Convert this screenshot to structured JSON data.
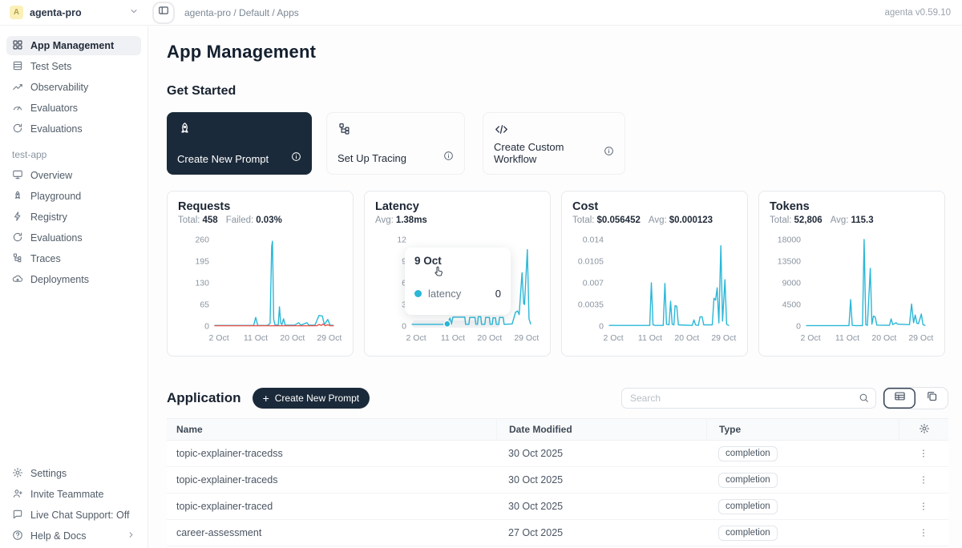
{
  "header": {
    "avatar_letter": "A",
    "workspace_name": "agenta-pro",
    "breadcrumb": "agenta-pro / Default / Apps",
    "version": "agenta v0.59.10"
  },
  "sidebar": {
    "top_items": [
      {
        "label": "App Management",
        "icon": "grid-icon"
      },
      {
        "label": "Test Sets",
        "icon": "table-icon"
      },
      {
        "label": "Observability",
        "icon": "trend-chart-icon"
      },
      {
        "label": "Evaluators",
        "icon": "gauge-icon"
      },
      {
        "label": "Evaluations",
        "icon": "refresh-icon"
      }
    ],
    "project_label": "test-app",
    "project_items": [
      {
        "label": "Overview",
        "icon": "monitor-icon"
      },
      {
        "label": "Playground",
        "icon": "rocket-icon"
      },
      {
        "label": "Registry",
        "icon": "lightning-icon"
      },
      {
        "label": "Evaluations",
        "icon": "refresh-icon"
      },
      {
        "label": "Traces",
        "icon": "tree-icon"
      },
      {
        "label": "Deployments",
        "icon": "cloud-icon"
      }
    ],
    "bottom_items": [
      {
        "label": "Settings",
        "icon": "gear-icon"
      },
      {
        "label": "Invite Teammate",
        "icon": "person-plus-icon"
      },
      {
        "label": "Live Chat Support: Off",
        "icon": "chat-icon"
      },
      {
        "label": "Help & Docs",
        "icon": "help-icon"
      }
    ]
  },
  "main": {
    "page_title": "App Management",
    "get_started": {
      "title": "Get Started",
      "cards": [
        {
          "label": "Create New Prompt",
          "icon": "rocket-icon"
        },
        {
          "label": "Set Up Tracing",
          "icon": "tree-icon"
        },
        {
          "label": "Create Custom Workflow",
          "icon": "code-icon"
        }
      ]
    },
    "application": {
      "title": "Application",
      "create_button_plus": "+",
      "create_button_label": "Create New Prompt",
      "search_placeholder": "Search",
      "columns": [
        "Name",
        "Date Modified",
        "Type"
      ],
      "rows": [
        {
          "name": "topic-explainer-tracedss",
          "date": "30 Oct 2025",
          "type": "completion"
        },
        {
          "name": "topic-explainer-traceds",
          "date": "30 Oct 2025",
          "type": "completion"
        },
        {
          "name": "topic-explainer-traced",
          "date": "30 Oct 2025",
          "type": "completion"
        },
        {
          "name": "career-assessment",
          "date": "27 Oct 2025",
          "type": "completion"
        }
      ]
    }
  },
  "tooltip": {
    "date": "9 Oct",
    "series": "latency",
    "value": "0"
  },
  "colors": {
    "accent": "#2bb7d7",
    "error": "#e8544c",
    "dark": "#1b2a3a"
  },
  "chart_data": [
    {
      "type": "line",
      "title": "Requests",
      "stats": [
        {
          "label": "Total:",
          "value": "458"
        },
        {
          "label": "Failed:",
          "value": "0.03%"
        }
      ],
      "ylabels": [
        260,
        195,
        130,
        65,
        0
      ],
      "ylim": [
        0,
        260
      ],
      "xlim": [
        1,
        31
      ],
      "xticks": [
        2,
        11,
        20,
        29
      ],
      "xlabels": [
        "2 Oct",
        "11 Oct",
        "20 Oct",
        "29 Oct"
      ],
      "series": [
        {
          "name": "requests",
          "color": "#2bb7d7",
          "points": [
            [
              1,
              2
            ],
            [
              10,
              2
            ],
            [
              10.5,
              2
            ],
            [
              11,
              26
            ],
            [
              11.5,
              2
            ],
            [
              13.8,
              2
            ],
            [
              14.5,
              8
            ],
            [
              14.9,
              240
            ],
            [
              15.1,
              255
            ],
            [
              15.4,
              20
            ],
            [
              15.7,
              4
            ],
            [
              16.5,
              3
            ],
            [
              16.8,
              58
            ],
            [
              17.1,
              10
            ],
            [
              17.4,
              4
            ],
            [
              17.8,
              22
            ],
            [
              18.2,
              3
            ],
            [
              20.5,
              3
            ],
            [
              21.5,
              10
            ],
            [
              22,
              3
            ],
            [
              23.5,
              10
            ],
            [
              24,
              3
            ],
            [
              25.5,
              3
            ],
            [
              26,
              18
            ],
            [
              26.5,
              32
            ],
            [
              27.3,
              30
            ],
            [
              27.8,
              4
            ],
            [
              28.6,
              20
            ],
            [
              29.2,
              3
            ],
            [
              30,
              2
            ]
          ]
        },
        {
          "name": "failed",
          "color": "#e8544c",
          "points": [
            [
              1,
              1
            ],
            [
              26,
              1
            ],
            [
              26.5,
              5
            ],
            [
              27,
              2
            ],
            [
              27.5,
              6
            ],
            [
              28,
              1
            ],
            [
              28.6,
              4
            ],
            [
              29.2,
              1
            ],
            [
              30,
              1
            ]
          ]
        }
      ]
    },
    {
      "type": "line",
      "title": "Latency",
      "stats": [
        {
          "label": "Avg:",
          "value": "1.38ms"
        }
      ],
      "ylabels": [
        12,
        9,
        6,
        3,
        0
      ],
      "ylim": [
        0,
        12
      ],
      "xlim": [
        1,
        31
      ],
      "xticks": [
        2,
        11,
        20,
        29
      ],
      "xlabels": [
        "2 Oct",
        "11 Oct",
        "20 Oct",
        "29 Oct"
      ],
      "band": true,
      "marker": [
        9.6,
        0.3
      ],
      "series": [
        {
          "name": "latency",
          "color": "#2bb7d7",
          "points": [
            [
              1,
              0.25
            ],
            [
              8.8,
              0.25
            ],
            [
              9.6,
              0.3
            ],
            [
              10.3,
              1.1
            ],
            [
              10.6,
              0.25
            ],
            [
              11,
              1.25
            ],
            [
              13.9,
              1.25
            ],
            [
              14.1,
              0.25
            ],
            [
              14.9,
              0.25
            ],
            [
              15.1,
              1.2
            ],
            [
              16.4,
              1.2
            ],
            [
              16.6,
              0.25
            ],
            [
              17,
              0.25
            ],
            [
              17.2,
              1.3
            ],
            [
              17.8,
              1.3
            ],
            [
              18,
              0.25
            ],
            [
              18.8,
              0.25
            ],
            [
              19,
              1.2
            ],
            [
              19.9,
              1.2
            ],
            [
              20.1,
              0.25
            ],
            [
              20.6,
              0.25
            ],
            [
              20.8,
              1.15
            ],
            [
              21.4,
              1.15
            ],
            [
              21.6,
              0.25
            ],
            [
              22.2,
              0.25
            ],
            [
              22.4,
              1.2
            ],
            [
              23.3,
              1.2
            ],
            [
              23.5,
              0.25
            ],
            [
              25.5,
              0.3
            ],
            [
              26.3,
              1.9
            ],
            [
              26.8,
              2.1
            ],
            [
              27.2,
              1.6
            ],
            [
              27.9,
              7.4
            ],
            [
              28.3,
              3.1
            ],
            [
              28.5,
              3.0
            ],
            [
              29.2,
              10.6
            ],
            [
              29.6,
              1
            ],
            [
              30,
              0.3
            ]
          ]
        }
      ]
    },
    {
      "type": "line",
      "title": "Cost",
      "stats": [
        {
          "label": "Total:",
          "value": "$0.056452"
        },
        {
          "label": "Avg:",
          "value": "$0.000123"
        }
      ],
      "ylabels": [
        0.014,
        0.0105,
        0.007,
        0.0035,
        0
      ],
      "ylim": [
        0,
        0.014
      ],
      "xlim": [
        1,
        31
      ],
      "xticks": [
        2,
        11,
        20,
        29
      ],
      "xlabels": [
        "2 Oct",
        "11 Oct",
        "20 Oct",
        "29 Oct"
      ],
      "series": [
        {
          "name": "cost",
          "color": "#2bb7d7",
          "points": [
            [
              1,
              0.0001
            ],
            [
              10.9,
              0.0001
            ],
            [
              11.3,
              0.007
            ],
            [
              11.7,
              0.0002
            ],
            [
              12.3,
              0.0001
            ],
            [
              14.2,
              0.0001
            ],
            [
              14.6,
              0.0069
            ],
            [
              15,
              0.0003
            ],
            [
              15.6,
              0.0002
            ],
            [
              16,
              0.004
            ],
            [
              16.4,
              0.0003
            ],
            [
              16.8,
              0.0002
            ],
            [
              17.1,
              0.0033
            ],
            [
              17.5,
              0.0032
            ],
            [
              17.9,
              0.0002
            ],
            [
              21.3,
              0.0001
            ],
            [
              21.7,
              0.001
            ],
            [
              22.1,
              0.0002
            ],
            [
              22.8,
              0.0001
            ],
            [
              23.2,
              0.0015
            ],
            [
              23.7,
              0.0015
            ],
            [
              24.1,
              0.0002
            ],
            [
              26.2,
              0.0002
            ],
            [
              26.6,
              0.0045
            ],
            [
              27,
              0.0042
            ],
            [
              27.4,
              0.0062
            ],
            [
              27.8,
              0.0005
            ],
            [
              28.3,
              0.013
            ],
            [
              28.7,
              0.0008
            ],
            [
              29.3,
              0.0075
            ],
            [
              29.7,
              0.0003
            ],
            [
              30.2,
              0.0001
            ]
          ]
        }
      ]
    },
    {
      "type": "line",
      "title": "Tokens",
      "stats": [
        {
          "label": "Total:",
          "value": "52,806"
        },
        {
          "label": "Avg:",
          "value": "115.3"
        }
      ],
      "ylabels": [
        18000,
        13500,
        9000,
        4500,
        0
      ],
      "ylim": [
        0,
        18000
      ],
      "xlim": [
        1,
        31
      ],
      "xticks": [
        2,
        11,
        20,
        29
      ],
      "xlabels": [
        "2 Oct",
        "11 Oct",
        "20 Oct",
        "29 Oct"
      ],
      "series": [
        {
          "name": "tokens",
          "color": "#2bb7d7",
          "points": [
            [
              1,
              100
            ],
            [
              11.4,
              100
            ],
            [
              11.8,
              5500
            ],
            [
              12.2,
              150
            ],
            [
              13,
              100
            ],
            [
              14.7,
              100
            ],
            [
              15.1,
              18000
            ],
            [
              15.5,
              300
            ],
            [
              15.9,
              150
            ],
            [
              16.6,
              12000
            ],
            [
              17,
              400
            ],
            [
              17.4,
              2100
            ],
            [
              17.8,
              1900
            ],
            [
              18.2,
              200
            ],
            [
              21.3,
              150
            ],
            [
              21.7,
              1500
            ],
            [
              22.1,
              300
            ],
            [
              22.9,
              700
            ],
            [
              23.3,
              400
            ],
            [
              26.2,
              300
            ],
            [
              26.7,
              4600
            ],
            [
              27.2,
              700
            ],
            [
              27.6,
              2300
            ],
            [
              28,
              600
            ],
            [
              28.4,
              500
            ],
            [
              29.1,
              2500
            ],
            [
              29.5,
              300
            ],
            [
              30,
              150
            ]
          ]
        }
      ]
    }
  ]
}
